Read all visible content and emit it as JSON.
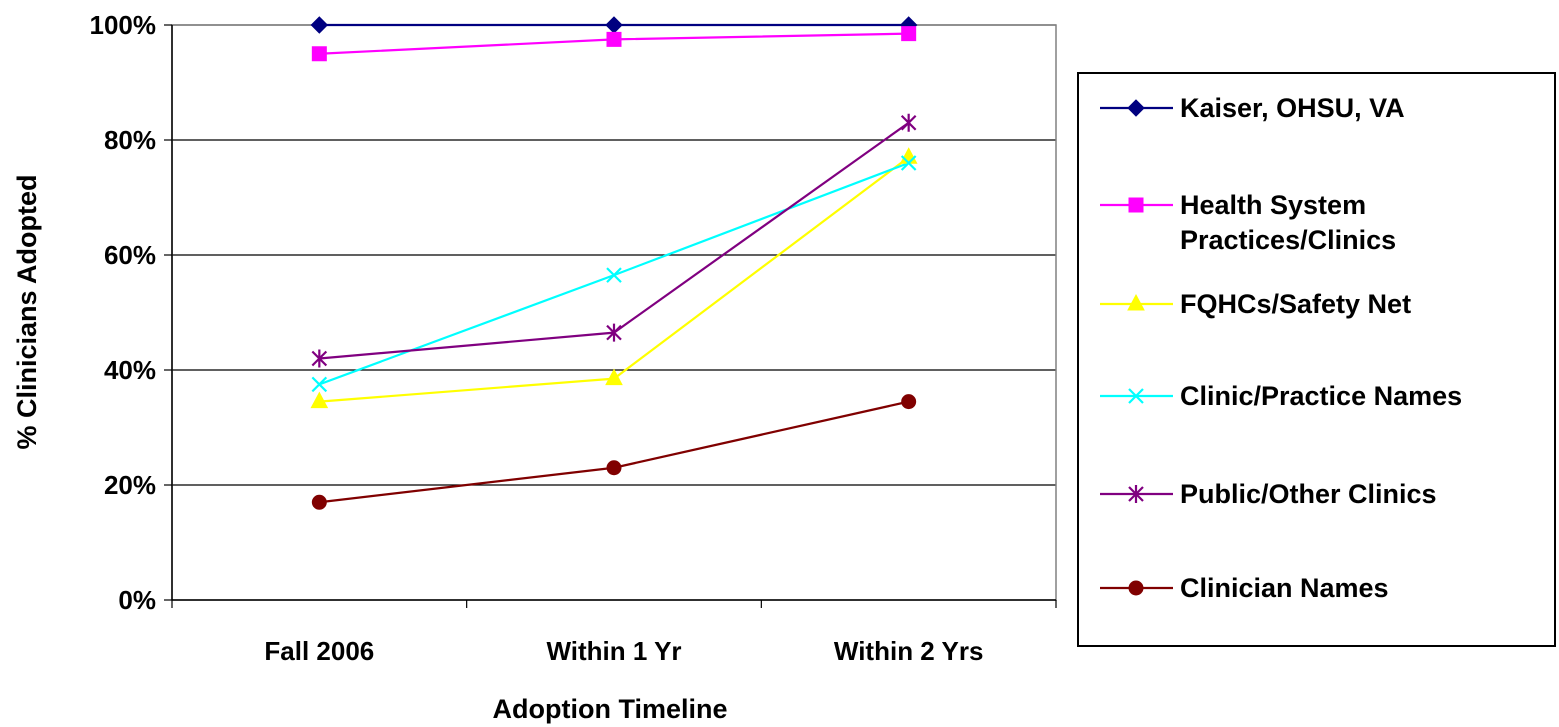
{
  "chart_data": {
    "type": "line",
    "title": "",
    "xlabel": "Adoption Timeline",
    "ylabel": "% Clinicians Adopted",
    "categories": [
      "Fall 2006",
      "Within 1 Yr",
      "Within 2 Yrs"
    ],
    "ylim": [
      0,
      100
    ],
    "yticks": [
      0,
      20,
      40,
      60,
      80,
      100
    ],
    "ytick_labels": [
      "0%",
      "20%",
      "40%",
      "60%",
      "80%",
      "100%"
    ],
    "grid": true,
    "legend_position": "right",
    "series": [
      {
        "name": "Kaiser, OHSU, VA",
        "values": [
          100,
          100,
          100
        ],
        "color": "#000080",
        "marker": "diamond"
      },
      {
        "name": "Health System Practices/Clinics",
        "legend_lines": [
          "Health System",
          "Practices/Clinics"
        ],
        "values": [
          95,
          97.5,
          98.5
        ],
        "color": "#FF00FF",
        "marker": "square"
      },
      {
        "name": "FQHCs/Safety Net",
        "values": [
          34.5,
          38.5,
          77
        ],
        "color": "#FFFF00",
        "marker": "triangle"
      },
      {
        "name": "Clinic/Practice Names",
        "values": [
          37.5,
          56.5,
          76
        ],
        "color": "#00FFFF",
        "marker": "x"
      },
      {
        "name": "Public/Other Clinics",
        "values": [
          42,
          46.5,
          83
        ],
        "color": "#800080",
        "marker": "star"
      },
      {
        "name": "Clinician Names",
        "values": [
          17,
          23,
          34.5
        ],
        "color": "#800000",
        "marker": "circle"
      }
    ]
  }
}
